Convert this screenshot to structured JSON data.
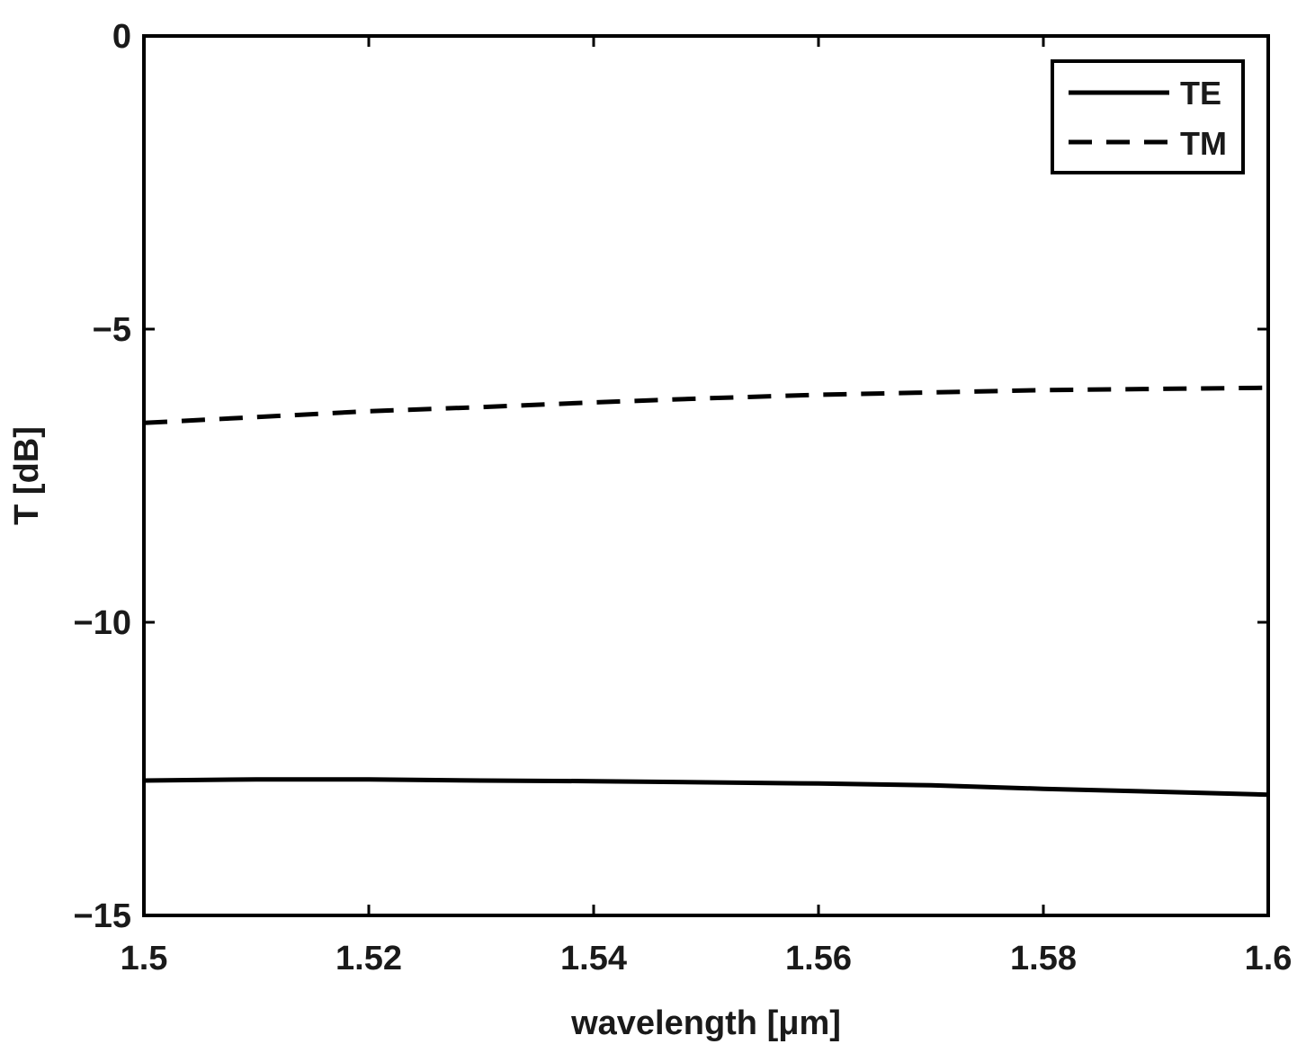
{
  "chart_data": {
    "type": "line",
    "title": "",
    "xlabel": "wavelength [μm]",
    "ylabel": "T [dB]",
    "xlim": [
      1.5,
      1.6
    ],
    "ylim": [
      -15,
      0
    ],
    "xticks": [
      1.5,
      1.52,
      1.54,
      1.56,
      1.58,
      1.6
    ],
    "xtick_labels": [
      "1.5",
      "1.52",
      "1.54",
      "1.56",
      "1.58",
      "1.6"
    ],
    "yticks": [
      0,
      -5,
      -10,
      -15
    ],
    "ytick_labels": [
      "0",
      "−5",
      "−10",
      "−15"
    ],
    "grid": false,
    "legend_position": "top-right",
    "series": [
      {
        "name": "TE",
        "style": "solid",
        "color": "#000000",
        "x": [
          1.5,
          1.51,
          1.52,
          1.53,
          1.54,
          1.55,
          1.56,
          1.57,
          1.58,
          1.59,
          1.6
        ],
        "y": [
          -12.7,
          -12.68,
          -12.68,
          -12.7,
          -12.71,
          -12.73,
          -12.75,
          -12.78,
          -12.84,
          -12.89,
          -12.94
        ]
      },
      {
        "name": "TM",
        "style": "dashed",
        "color": "#000000",
        "x": [
          1.5,
          1.51,
          1.52,
          1.53,
          1.54,
          1.55,
          1.56,
          1.57,
          1.58,
          1.59,
          1.6
        ],
        "y": [
          -6.6,
          -6.5,
          -6.4,
          -6.33,
          -6.25,
          -6.18,
          -6.12,
          -6.08,
          -6.04,
          -6.02,
          -6.0
        ]
      }
    ]
  }
}
